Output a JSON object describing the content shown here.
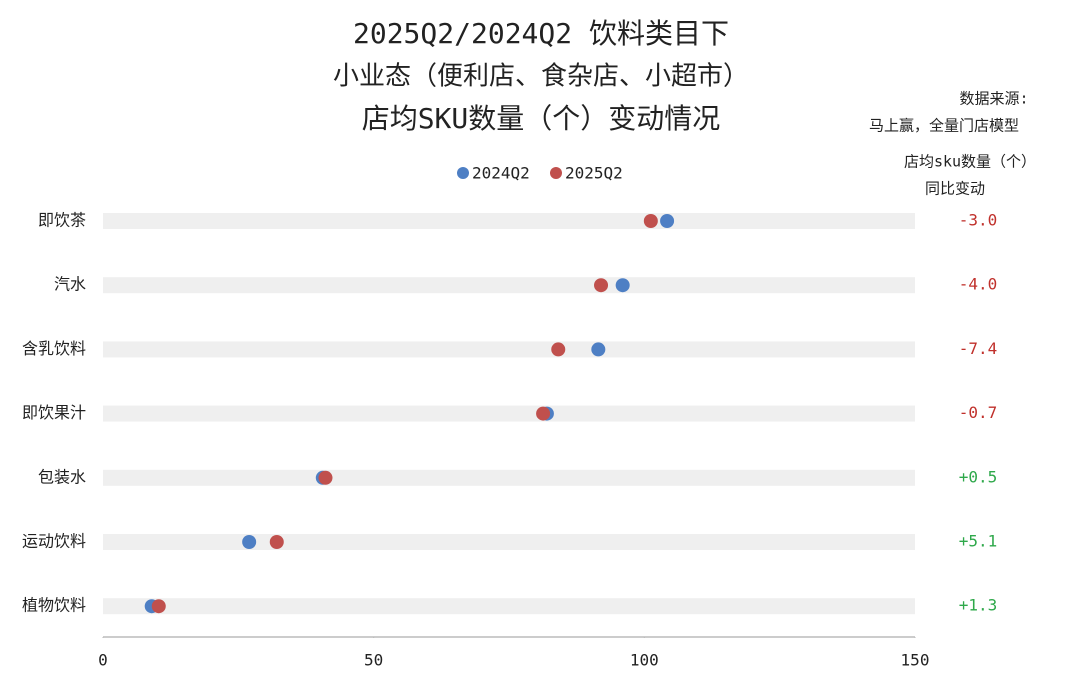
{
  "chart_data": {
    "type": "dot",
    "title": "2025Q2/2024Q2 饮料类目下",
    "subtitle": "小业态（便利店、食杂店、小超市）",
    "subtitle2": "店均SKU数量（个）变动情况",
    "source_label": "数据来源:",
    "source": "马上赢，全量门店模型",
    "change_header": "店均sku数量（个）",
    "change_header2": "同比变动",
    "categories": [
      "即饮茶",
      "汽水",
      "含乳饮料",
      "即饮果汁",
      "包装水",
      "运动饮料",
      "植物饮料"
    ],
    "series": [
      {
        "name": "2024Q2",
        "color": "#4e7fc4",
        "values": [
          104.2,
          96.0,
          91.5,
          82.0,
          40.6,
          27.0,
          9.0
        ]
      },
      {
        "name": "2025Q2",
        "color": "#c0504d",
        "values": [
          101.2,
          92.0,
          84.1,
          81.3,
          41.1,
          32.1,
          10.3
        ]
      }
    ],
    "changes": {
      "values": [
        -3.0,
        -4.0,
        -7.4,
        -0.7,
        0.5,
        5.1,
        1.3
      ],
      "value_labels": [
        "-3.0",
        "-4.0",
        "-7.4",
        "-0.7",
        "+0.5",
        "+5.1",
        "+1.3"
      ],
      "negative_color": "#c0302b",
      "positive_color": "#2ea84a"
    },
    "xlim": [
      0,
      150
    ],
    "xticks": [
      0,
      50,
      100,
      150
    ],
    "grid": false
  }
}
